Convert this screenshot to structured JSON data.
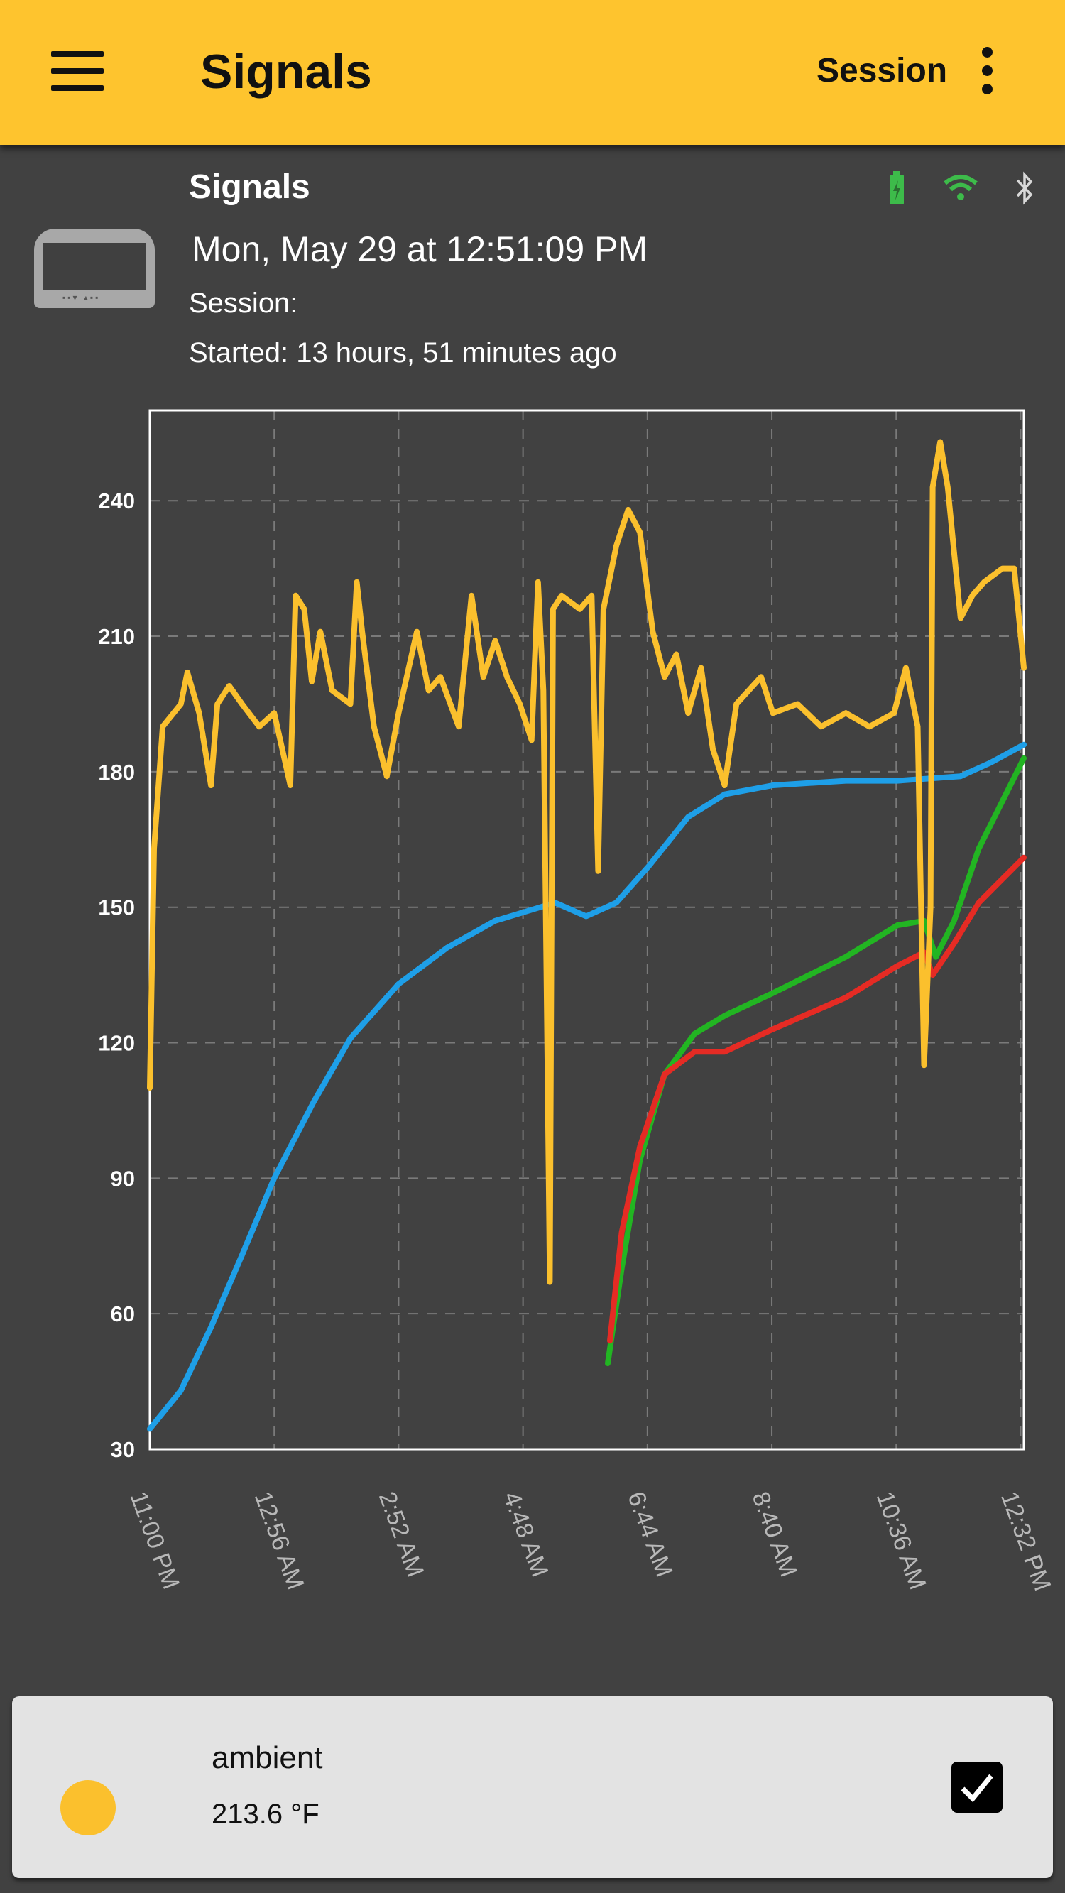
{
  "appbar": {
    "title": "Signals",
    "session_label": "Session",
    "menu_icon": "hamburger-menu-icon",
    "more_icon": "more-vertical-icon",
    "color": "#FEC42E"
  },
  "info": {
    "device_name": "Signals",
    "datetime": "Mon, May 29  at 12:51:09 PM",
    "session": "Session:",
    "started": "Started: 13 hours, 51 minutes ago",
    "status_icons": [
      "battery-charging-icon",
      "wifi-icon",
      "bluetooth-icon"
    ]
  },
  "chart_data": {
    "type": "line",
    "xlim": [
      "23:00",
      "12:35"
    ],
    "ylim": [
      30,
      260
    ],
    "grid": true,
    "y_ticks": [
      "30",
      "60",
      "90",
      "120",
      "150",
      "180",
      "210",
      "240"
    ],
    "x_ticks": [
      {
        "t": "23:00",
        "label": "11:00 PM"
      },
      {
        "t": "00:56",
        "label": "12:56 AM"
      },
      {
        "t": "02:52",
        "label": "2:52 AM"
      },
      {
        "t": "04:48",
        "label": "4:48 AM"
      },
      {
        "t": "06:44",
        "label": "6:44 AM"
      },
      {
        "t": "08:40",
        "label": "8:40 AM"
      },
      {
        "t": "10:36",
        "label": "10:36 AM"
      },
      {
        "t": "12:32",
        "label": "12:32 PM"
      }
    ],
    "series": [
      {
        "name": "ambient",
        "color": "#FBC02D",
        "points": [
          [
            "23:00",
            110
          ],
          [
            "23:04",
            163
          ],
          [
            "23:12",
            190
          ],
          [
            "23:29",
            195
          ],
          [
            "23:35",
            202
          ],
          [
            "23:46",
            193
          ],
          [
            "23:57",
            177
          ],
          [
            "00:03",
            195
          ],
          [
            "00:14",
            199
          ],
          [
            "00:26",
            195
          ],
          [
            "00:42",
            190
          ],
          [
            "00:56",
            193
          ],
          [
            "01:11",
            177
          ],
          [
            "01:16",
            219
          ],
          [
            "01:24",
            216
          ],
          [
            "01:31",
            200
          ],
          [
            "01:39",
            211
          ],
          [
            "01:50",
            198
          ],
          [
            "02:07",
            195
          ],
          [
            "02:13",
            222
          ],
          [
            "02:18",
            211
          ],
          [
            "02:29",
            190
          ],
          [
            "02:41",
            179
          ],
          [
            "02:52",
            193
          ],
          [
            "03:09",
            211
          ],
          [
            "03:20",
            198
          ],
          [
            "03:31",
            201
          ],
          [
            "03:48",
            190
          ],
          [
            "04:00",
            219
          ],
          [
            "04:11",
            201
          ],
          [
            "04:22",
            209
          ],
          [
            "04:33",
            201
          ],
          [
            "04:45",
            195
          ],
          [
            "04:56",
            187
          ],
          [
            "05:02",
            222
          ],
          [
            "05:07",
            198
          ],
          [
            "05:13",
            67
          ],
          [
            "05:16",
            216
          ],
          [
            "05:24",
            219
          ],
          [
            "05:41",
            216
          ],
          [
            "05:52",
            219
          ],
          [
            "05:58",
            158
          ],
          [
            "06:03",
            216
          ],
          [
            "06:15",
            230
          ],
          [
            "06:26",
            238
          ],
          [
            "06:37",
            233
          ],
          [
            "06:49",
            211
          ],
          [
            "07:00",
            201
          ],
          [
            "07:11",
            206
          ],
          [
            "07:22",
            193
          ],
          [
            "07:34",
            203
          ],
          [
            "07:45",
            185
          ],
          [
            "07:56",
            177
          ],
          [
            "08:07",
            195
          ],
          [
            "08:30",
            201
          ],
          [
            "08:41",
            193
          ],
          [
            "09:04",
            195
          ],
          [
            "09:26",
            190
          ],
          [
            "09:49",
            193
          ],
          [
            "10:11",
            190
          ],
          [
            "10:34",
            193
          ],
          [
            "10:45",
            203
          ],
          [
            "10:56",
            190
          ],
          [
            "11:02",
            115
          ],
          [
            "11:08",
            150
          ],
          [
            "11:10",
            243
          ],
          [
            "11:17",
            253
          ],
          [
            "11:24",
            243
          ],
          [
            "11:36",
            214
          ],
          [
            "11:47",
            219
          ],
          [
            "11:58",
            222
          ],
          [
            "12:15",
            225
          ],
          [
            "12:26",
            225
          ],
          [
            "12:35",
            203
          ]
        ]
      },
      {
        "color": "#1E9FE8",
        "points": [
          [
            "23:00",
            34.5
          ],
          [
            "23:29",
            43
          ],
          [
            "23:57",
            57
          ],
          [
            "00:26",
            73
          ],
          [
            "00:56",
            90
          ],
          [
            "01:33",
            107
          ],
          [
            "02:07",
            121
          ],
          [
            "02:52",
            133
          ],
          [
            "03:37",
            141
          ],
          [
            "04:22",
            147
          ],
          [
            "05:18",
            151
          ],
          [
            "05:47",
            148
          ],
          [
            "06:15",
            151
          ],
          [
            "06:45",
            159
          ],
          [
            "07:22",
            170
          ],
          [
            "07:56",
            175
          ],
          [
            "08:41",
            177
          ],
          [
            "09:49",
            178
          ],
          [
            "10:37",
            178
          ],
          [
            "11:36",
            179
          ],
          [
            "12:04",
            182
          ],
          [
            "12:35",
            186
          ]
        ]
      },
      {
        "color": "#E52B24",
        "points": [
          [
            "06:09",
            54
          ],
          [
            "06:20",
            78
          ],
          [
            "06:37",
            97
          ],
          [
            "07:00",
            113
          ],
          [
            "07:28",
            118
          ],
          [
            "07:56",
            118
          ],
          [
            "08:41",
            123
          ],
          [
            "09:49",
            130
          ],
          [
            "10:37",
            137
          ],
          [
            "11:02",
            140
          ],
          [
            "11:10",
            135
          ],
          [
            "11:30",
            142
          ],
          [
            "11:53",
            151
          ],
          [
            "12:35",
            161
          ]
        ]
      },
      {
        "color": "#22B522",
        "points": [
          [
            "06:07",
            49
          ],
          [
            "06:20",
            70
          ],
          [
            "06:37",
            94
          ],
          [
            "07:00",
            113
          ],
          [
            "07:28",
            122
          ],
          [
            "07:56",
            126
          ],
          [
            "08:41",
            131
          ],
          [
            "09:49",
            139
          ],
          [
            "10:37",
            146
          ],
          [
            "11:02",
            147
          ],
          [
            "11:13",
            139
          ],
          [
            "11:30",
            147
          ],
          [
            "11:53",
            163
          ],
          [
            "12:35",
            183
          ]
        ]
      }
    ]
  },
  "legend_card": {
    "name": "ambient",
    "value": "213.6 °F",
    "color": "#FBC02D",
    "checked": true
  }
}
